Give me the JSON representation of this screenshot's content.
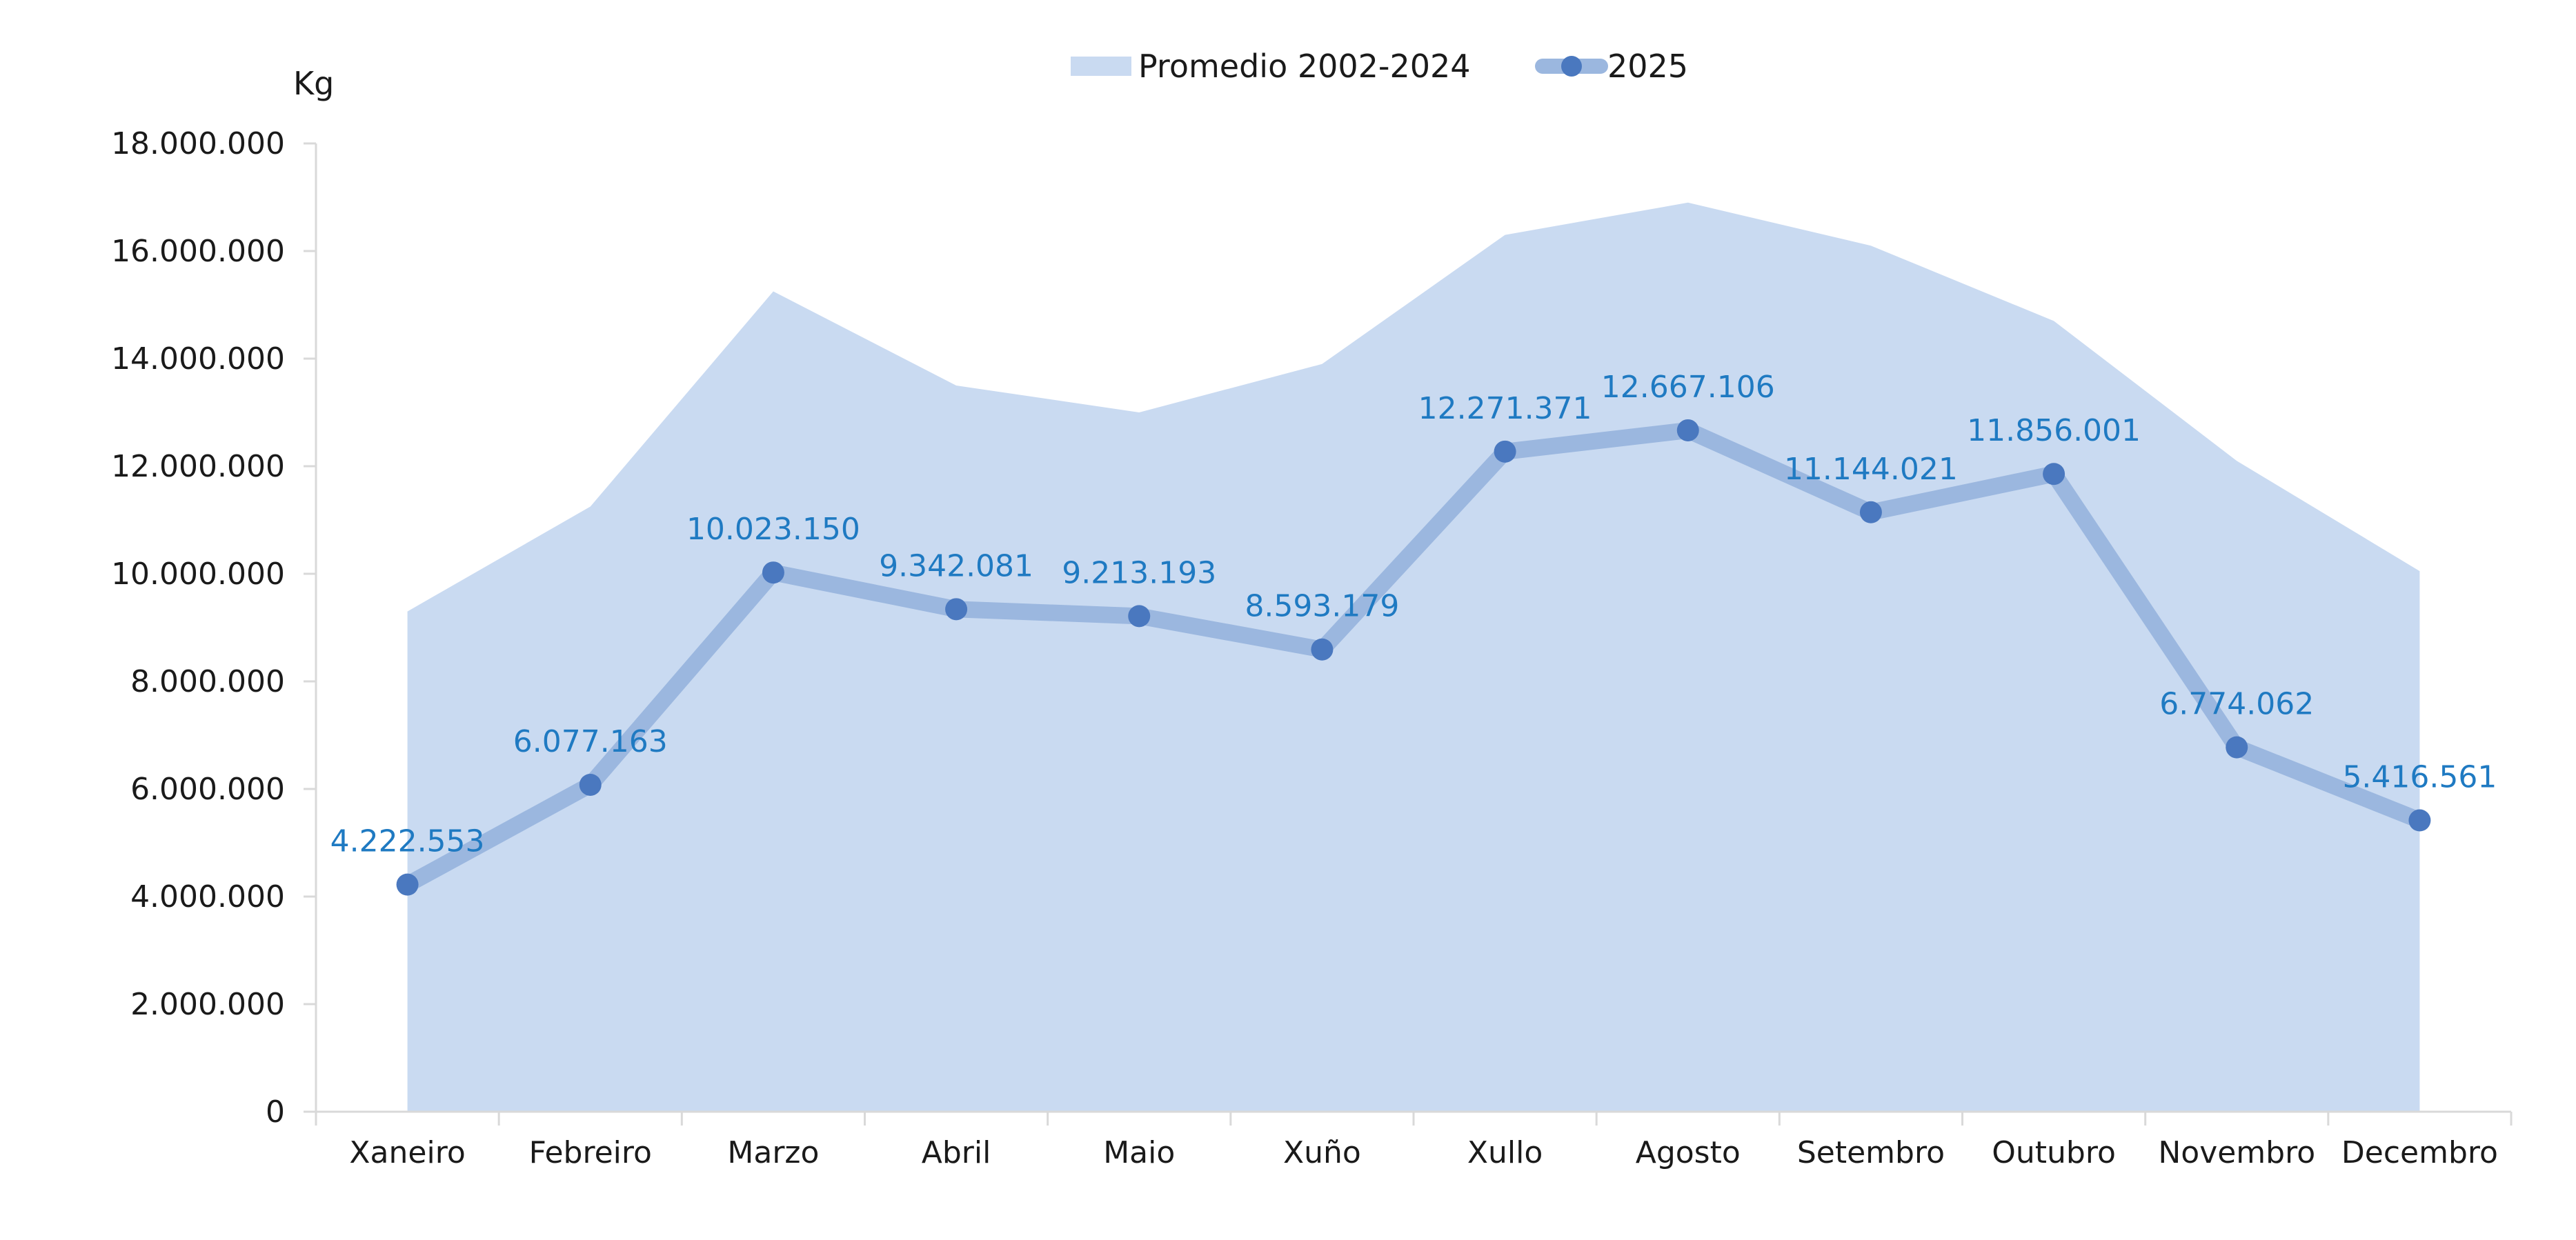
{
  "chart_data": {
    "type": "line",
    "title": "",
    "xlabel": "",
    "ylabel": "Kg",
    "ylim": [
      0,
      18000000
    ],
    "y_ticks": [
      0,
      2000000,
      4000000,
      6000000,
      8000000,
      10000000,
      12000000,
      14000000,
      16000000,
      18000000
    ],
    "y_tick_labels": [
      "0",
      "2.000.000",
      "4.000.000",
      "6.000.000",
      "8.000.000",
      "10.000.000",
      "12.000.000",
      "14.000.000",
      "16.000.000",
      "18.000.000"
    ],
    "categories": [
      "Xaneiro",
      "Febreiro",
      "Marzo",
      "Abril",
      "Maio",
      "Xuño",
      "Xullo",
      "Agosto",
      "Setembro",
      "Outubro",
      "Novembro",
      "Decembro"
    ],
    "legend_position": "top-center",
    "grid": false,
    "series": [
      {
        "name": "Promedio 2002-2024",
        "type": "area",
        "color": "#c9daf1",
        "values": [
          9300000,
          11250000,
          15250000,
          13500000,
          13000000,
          13900000,
          16300000,
          16900000,
          16100000,
          14700000,
          12100000,
          10050000
        ]
      },
      {
        "name": "2025",
        "type": "line",
        "color": "#9bb7df",
        "marker_color": "#4a78bf",
        "label_color": "#1f7ac2",
        "values": [
          4222553,
          6077163,
          10023150,
          9342081,
          9213193,
          8593179,
          12271371,
          12667106,
          11144021,
          11856001,
          6774062,
          5416561
        ],
        "data_labels": [
          "4.222.553",
          "6.077.163",
          "10.023.150",
          "9.342.081",
          "9.213.193",
          "8.593.179",
          "12.271.371",
          "12.667.106",
          "11.144.021",
          "11.856.001",
          "6.774.062",
          "5.416.561"
        ]
      }
    ]
  }
}
